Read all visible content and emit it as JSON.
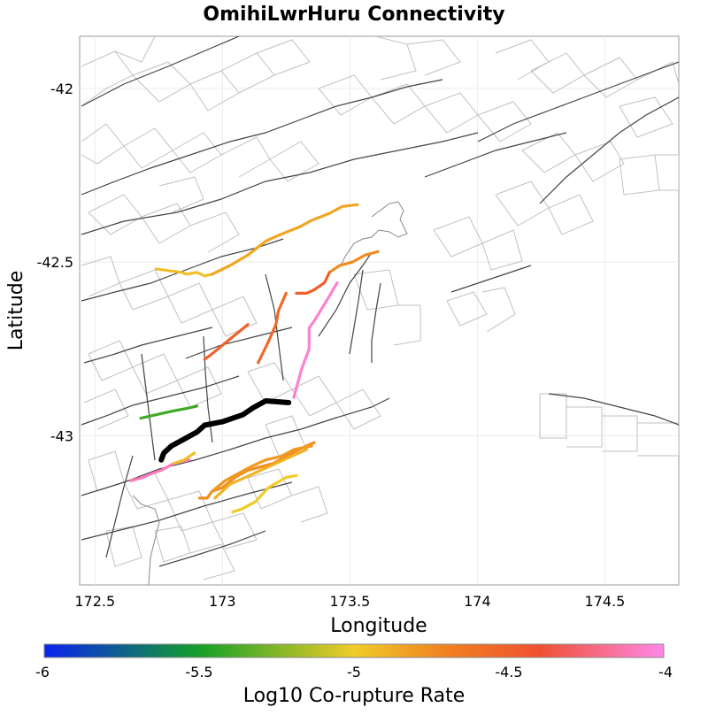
{
  "chart_data": {
    "type": "map",
    "title": "OmihiLwrHuru Connectivity",
    "xlabel": "Longitude",
    "ylabel": "Latitude",
    "xlim": [
      172.44,
      174.79
    ],
    "ylim": [
      -43.43,
      -41.85
    ],
    "x_ticks": [
      {
        "value": 172.5,
        "label": "172.5"
      },
      {
        "value": 173,
        "label": "173"
      },
      {
        "value": 173.5,
        "label": "173.5"
      },
      {
        "value": 174,
        "label": "174"
      },
      {
        "value": 174.5,
        "label": "174.5"
      }
    ],
    "y_ticks": [
      {
        "value": -42,
        "label": "-42"
      },
      {
        "value": -42.5,
        "label": "-42.5"
      },
      {
        "value": -43,
        "label": "-43"
      }
    ],
    "colorbar": {
      "label": "Log10 Co-rupture Rate",
      "range": [
        -6,
        -4
      ],
      "ticks": [
        {
          "value": -6,
          "label": "-6"
        },
        {
          "value": -5.5,
          "label": "-5.5"
        },
        {
          "value": -5,
          "label": "-5"
        },
        {
          "value": -4.5,
          "label": "-4.5"
        },
        {
          "value": -4,
          "label": "-4"
        }
      ],
      "stops": [
        "#0a22f0",
        "#14a028",
        "#f0cc28",
        "#f08020",
        "#f05032",
        "#ff88e8"
      ]
    },
    "target_fault": {
      "name": "OmihiLwrHuru",
      "color": "#000000",
      "trace": [
        [
          172.76,
          -43.07
        ],
        [
          172.77,
          -43.05
        ],
        [
          172.8,
          -43.03
        ],
        [
          172.85,
          -43.01
        ],
        [
          172.9,
          -42.99
        ],
        [
          172.93,
          -42.97
        ],
        [
          173.0,
          -42.96
        ],
        [
          173.08,
          -42.94
        ],
        [
          173.12,
          -42.92
        ],
        [
          173.17,
          -42.9
        ],
        [
          173.26,
          -42.905
        ]
      ]
    },
    "connected_faults": [
      {
        "log10_rate": -4.95,
        "trace": [
          [
            172.74,
            -42.52
          ],
          [
            172.79,
            -42.525
          ],
          [
            172.84,
            -42.53
          ],
          [
            172.86,
            -42.535
          ],
          [
            172.9,
            -42.53
          ],
          [
            172.93,
            -42.54
          ],
          [
            172.96,
            -42.535
          ]
        ]
      },
      {
        "log10_rate": -4.85,
        "trace": [
          [
            172.96,
            -42.535
          ],
          [
            173.03,
            -42.51
          ],
          [
            173.1,
            -42.48
          ],
          [
            173.17,
            -42.44
          ],
          [
            173.23,
            -42.42
          ],
          [
            173.3,
            -42.4
          ],
          [
            173.35,
            -42.38
          ],
          [
            173.42,
            -42.36
          ],
          [
            173.47,
            -42.34
          ],
          [
            173.53,
            -42.335
          ]
        ]
      },
      {
        "log10_rate": -4.75,
        "trace": [
          [
            173.42,
            -42.53
          ],
          [
            173.46,
            -42.51
          ],
          [
            173.51,
            -42.5
          ],
          [
            173.56,
            -42.48
          ],
          [
            173.61,
            -42.47
          ]
        ]
      },
      {
        "log10_rate": -4.5,
        "trace": [
          [
            173.29,
            -42.59
          ],
          [
            173.33,
            -42.59
          ],
          [
            173.36,
            -42.58
          ],
          [
            173.4,
            -42.56
          ],
          [
            173.42,
            -42.53
          ]
        ]
      },
      {
        "log10_rate": -4.55,
        "trace": [
          [
            173.25,
            -42.59
          ],
          [
            173.22,
            -42.64
          ],
          [
            173.21,
            -42.68
          ],
          [
            173.18,
            -42.73
          ],
          [
            173.14,
            -42.79
          ]
        ]
      },
      {
        "log10_rate": -4.5,
        "trace": [
          [
            173.1,
            -42.68
          ],
          [
            173.05,
            -42.71
          ],
          [
            173.0,
            -42.74
          ],
          [
            172.95,
            -42.77
          ],
          [
            172.93,
            -42.78
          ]
        ]
      },
      {
        "log10_rate": -4.05,
        "trace": [
          [
            173.45,
            -42.56
          ],
          [
            173.41,
            -42.61
          ],
          [
            173.36,
            -42.67
          ],
          [
            173.34,
            -42.69
          ],
          [
            173.34,
            -42.75
          ],
          [
            173.31,
            -42.81
          ],
          [
            173.28,
            -42.89
          ]
        ]
      },
      {
        "log10_rate": -5.4,
        "trace": [
          [
            172.68,
            -42.95
          ],
          [
            172.74,
            -42.94
          ],
          [
            172.8,
            -42.93
          ],
          [
            172.87,
            -42.92
          ],
          [
            172.9,
            -42.915
          ]
        ]
      },
      {
        "log10_rate": -4.1,
        "trace": [
          [
            172.64,
            -43.13
          ],
          [
            172.69,
            -43.12
          ],
          [
            172.72,
            -43.11
          ],
          [
            172.76,
            -43.1
          ],
          [
            172.81,
            -43.08
          ],
          [
            172.87,
            -43.07
          ]
        ]
      },
      {
        "log10_rate": -4.95,
        "trace": [
          [
            172.81,
            -43.08
          ],
          [
            172.85,
            -43.07
          ],
          [
            172.89,
            -43.05
          ]
        ]
      },
      {
        "log10_rate": -4.75,
        "trace": [
          [
            172.91,
            -43.18
          ],
          [
            172.94,
            -43.18
          ],
          [
            172.96,
            -43.16
          ],
          [
            173.0,
            -43.15
          ],
          [
            173.05,
            -43.12
          ],
          [
            173.1,
            -43.1
          ],
          [
            173.15,
            -43.09
          ],
          [
            173.2,
            -43.08
          ],
          [
            173.25,
            -43.06
          ],
          [
            173.3,
            -43.04
          ],
          [
            173.36,
            -43.02
          ]
        ]
      },
      {
        "log10_rate": -4.8,
        "trace": [
          [
            172.96,
            -43.16
          ],
          [
            173.01,
            -43.13
          ],
          [
            173.06,
            -43.11
          ],
          [
            173.11,
            -43.09
          ],
          [
            173.17,
            -43.07
          ],
          [
            173.23,
            -43.06
          ],
          [
            173.28,
            -43.04
          ],
          [
            173.35,
            -43.03
          ]
        ]
      },
      {
        "log10_rate": -4.9,
        "trace": [
          [
            172.97,
            -43.18
          ],
          [
            173.03,
            -43.14
          ],
          [
            173.09,
            -43.12
          ],
          [
            173.15,
            -43.1
          ],
          [
            173.21,
            -43.08
          ],
          [
            173.27,
            -43.06
          ],
          [
            173.33,
            -43.04
          ]
        ]
      },
      {
        "log10_rate": -5.0,
        "trace": [
          [
            173.04,
            -43.22
          ],
          [
            173.08,
            -43.21
          ],
          [
            173.13,
            -43.19
          ],
          [
            173.18,
            -43.15
          ],
          [
            173.25,
            -43.12
          ],
          [
            173.29,
            -43.115
          ]
        ]
      }
    ]
  }
}
